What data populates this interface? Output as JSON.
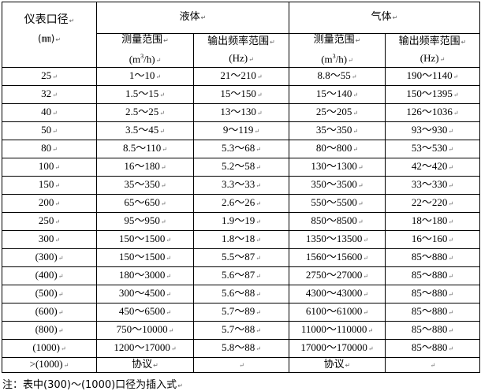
{
  "header": {
    "diameter_label": "仪表口径",
    "diameter_unit": "(㎜)",
    "liquid": "液体",
    "gas": "气体",
    "measure_range": "测量范围",
    "measure_unit_prefix": "(m",
    "measure_unit_sup": "3",
    "measure_unit_suffix": "/h)",
    "freq_range": "输出频率范围",
    "freq_unit": "(Hz)"
  },
  "rows": [
    [
      "25",
      "1～10",
      "21～210",
      "8.8～55",
      "190～1140"
    ],
    [
      "32",
      "1.5～15",
      "15～150",
      "15～140",
      "150～1395"
    ],
    [
      "40",
      "2.5～25",
      "13～130",
      "25～205",
      "126～1036"
    ],
    [
      "50",
      "3.5～45",
      "9～119",
      "35～350",
      "93～930"
    ],
    [
      "80",
      "8.5～110",
      "5.3～68",
      "80～800",
      "53～530"
    ],
    [
      "100",
      "16～180",
      "5.2～58",
      "130～1300",
      "42～420"
    ],
    [
      "150",
      "35～350",
      "3.3～33",
      "350～3500",
      "33～330"
    ],
    [
      "200",
      "65～650",
      "2.6～26",
      "550～5500",
      "22～220"
    ],
    [
      "250",
      "95～950",
      "1.9～19",
      "850～8500",
      "18～180"
    ],
    [
      "300",
      "150～1500",
      "1.8～18",
      "1350～13500",
      "16～160"
    ],
    [
      "(300)",
      "150～1500",
      "5.5～87",
      "1560～15600",
      "85～880"
    ],
    [
      "(400)",
      "180～3000",
      "5.6～87",
      "2750～27000",
      "85～880"
    ],
    [
      "(500)",
      "300～4500",
      "5.6～88",
      "4300～43000",
      "85～880"
    ],
    [
      "(600)",
      "450～6500",
      "5.7～89",
      "6100～61000",
      "85～880"
    ],
    [
      "(800)",
      "750～10000",
      "5.7～88",
      "11000～110000",
      "85～880"
    ],
    [
      "(1000)",
      "1200～17000",
      "5.8～88",
      "17000～170000",
      "85～880"
    ],
    [
      ">(1000)",
      "协议",
      "",
      "协议",
      ""
    ]
  ],
  "note": "注：表中(300)～(1000)口径为插入式"
}
